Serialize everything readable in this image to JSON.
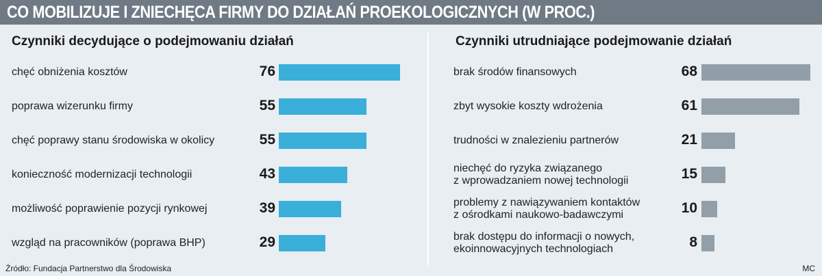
{
  "title": "CO MOBILIZUJE I ZNIECHĘCA FIRMY DO DZIAŁAŃ PROEKOLOGICZNYCH (W PROC.)",
  "source": "Źródło: Fundacja Partnerstwo dla Środowiska",
  "author": "MC",
  "colors": {
    "left_bar": "#3aafda",
    "right_bar": "#939fa8",
    "title_bg": "#6f7a84"
  },
  "chart_data": [
    {
      "type": "bar",
      "orientation": "horizontal",
      "title": "Czynniki decydujące o podejmowaniu działań",
      "categories": [
        [
          "chęć obniżenia kosztów"
        ],
        [
          "poprawa wizerunku firmy"
        ],
        [
          "chęć poprawy stanu środowiska w okolicy"
        ],
        [
          "konieczność modernizacji technologii"
        ],
        [
          "możliwość poprawienie pozycji rynkowej"
        ],
        [
          "wzgląd na pracowników (poprawa BHP)"
        ]
      ],
      "values": [
        76,
        55,
        55,
        43,
        39,
        29
      ],
      "xlim": [
        0,
        76
      ]
    },
    {
      "type": "bar",
      "orientation": "horizontal",
      "title": "Czynniki utrudniające podejmowanie działań",
      "categories": [
        [
          "brak środów finansowych"
        ],
        [
          "zbyt wysokie koszty wdrożenia"
        ],
        [
          "trudności w znalezieniu partnerów"
        ],
        [
          "niechęć do ryzyka związanego",
          "z wprowadzaniem nowej technologii"
        ],
        [
          "problemy z nawiązywaniem kontaktów",
          "z ośrodkami naukowo-badawczymi"
        ],
        [
          "brak dostępu do informacji o nowych,",
          "ekoinnowacyjnych technologiach"
        ]
      ],
      "values": [
        68,
        61,
        21,
        15,
        10,
        8
      ],
      "xlim": [
        0,
        68
      ]
    }
  ]
}
